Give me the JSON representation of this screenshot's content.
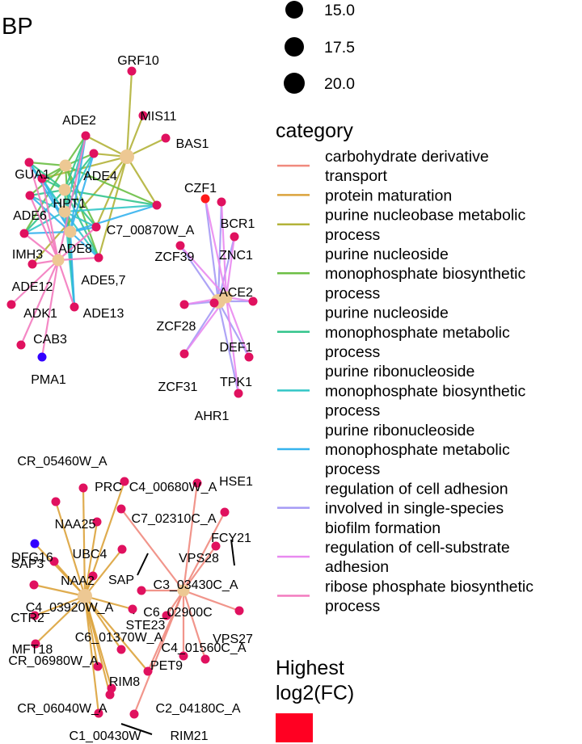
{
  "panel_title": "BP",
  "size_legend": {
    "values": [
      "15.0",
      "17.5",
      "20.0"
    ]
  },
  "category_legend": {
    "title": "category",
    "items": [
      {
        "lines": [
          "carbohydrate derivative",
          "transport"
        ],
        "color": "#f08a7e"
      },
      {
        "lines": [
          "protein maturation"
        ],
        "color": "#dba33c"
      },
      {
        "lines": [
          "purine nucleobase metabolic",
          "process"
        ],
        "color": "#b3b33a"
      },
      {
        "lines": [
          "purine nucleoside",
          "monophosphate biosynthetic",
          "process"
        ],
        "color": "#6cbf45"
      },
      {
        "lines": [
          "purine nucleoside",
          "monophosphate metabolic",
          "process"
        ],
        "color": "#33c48c"
      },
      {
        "lines": [
          "purine ribonucleoside",
          "monophosphate biosynthetic",
          "process"
        ],
        "color": "#33c6c6"
      },
      {
        "lines": [
          "purine ribonucleoside",
          "monophosphate metabolic",
          "process"
        ],
        "color": "#36b3ee"
      },
      {
        "lines": [
          "regulation of cell adhesion",
          "involved in single-species",
          "biofilm formation"
        ],
        "color": "#a59af5"
      },
      {
        "lines": [
          "regulation of cell-substrate",
          "adhesion"
        ],
        "color": "#e98af0"
      },
      {
        "lines": [
          "ribose phosphate biosynthetic",
          "process"
        ],
        "color": "#f37bbf"
      }
    ]
  },
  "fc_legend": {
    "title_lines": [
      "Highest",
      "log2(FC)"
    ],
    "color": "#ff0022"
  },
  "network": {
    "node_colors": {
      "category": "#edc893",
      "up": "#e0115f",
      "high": "#ff1a1a",
      "down": "#3a16e8",
      "down_strong": "#3300ff",
      "gray": "#b11a8a"
    },
    "category_nodes": [
      {
        "id": "c_purnb",
        "cat": 2,
        "size": 20.0
      },
      {
        "id": "c_a1",
        "cat": 3,
        "size": 17.5
      },
      {
        "id": "c_a2",
        "cat": 4,
        "size": 17.5
      },
      {
        "id": "c_a3",
        "cat": 5,
        "size": 17.5
      },
      {
        "id": "c_a4",
        "cat": 6,
        "size": 17.5
      },
      {
        "id": "c_rib",
        "cat": 9,
        "size": 17.5
      },
      {
        "id": "c_biof",
        "cat": 7,
        "size": 20.0
      },
      {
        "id": "c_subs",
        "cat": 8,
        "size": 17.5
      },
      {
        "id": "c_carb",
        "cat": 0,
        "size": 17.5
      },
      {
        "id": "c_prot",
        "cat": 1,
        "size": 20.0
      }
    ],
    "genes": [
      {
        "label": "GRF10",
        "c": "up"
      },
      {
        "label": "MIS11",
        "c": "up"
      },
      {
        "label": "BAS1",
        "c": "up"
      },
      {
        "label": "ADE2",
        "c": "up"
      },
      {
        "label": "GUA1",
        "c": "up"
      },
      {
        "label": "ADE4",
        "c": "up"
      },
      {
        "label": "HPT1",
        "c": "up"
      },
      {
        "label": "ADE6",
        "c": "up"
      },
      {
        "label": "C7_00870W_A",
        "c": "up"
      },
      {
        "label": "ADE8",
        "c": "up"
      },
      {
        "label": "IMH3",
        "c": "up"
      },
      {
        "label": "ADE5,7",
        "c": "up"
      },
      {
        "label": "ADE12",
        "c": "up"
      },
      {
        "label": "ADK1",
        "c": "up"
      },
      {
        "label": "ADE13",
        "c": "up"
      },
      {
        "label": "CAB3",
        "c": "up"
      },
      {
        "label": "PMA1",
        "c": "down_strong"
      },
      {
        "label": "CZF1",
        "c": "high"
      },
      {
        "label": "BCR1",
        "c": "up"
      },
      {
        "label": "ZCF39",
        "c": "up"
      },
      {
        "label": "ZNC1",
        "c": "up"
      },
      {
        "label": "ACE2",
        "c": "up"
      },
      {
        "label": "ZCF28",
        "c": "up"
      },
      {
        "label": "DEF1",
        "c": "up"
      },
      {
        "label": "ZCF31",
        "c": "up"
      },
      {
        "label": "TPK1",
        "c": "up"
      },
      {
        "label": "AHR1",
        "c": "up"
      },
      {
        "label": "CR_05460W_A",
        "c": "up"
      },
      {
        "label": "PRC",
        "c": "up"
      },
      {
        "label": "C4_00680W_A",
        "c": "up"
      },
      {
        "label": "HSE1",
        "c": "up"
      },
      {
        "label": "NAA25",
        "c": "up"
      },
      {
        "label": "C7_02310C_A",
        "c": "up"
      },
      {
        "label": "DFG16",
        "c": "down_strong"
      },
      {
        "label": "FCY21",
        "c": "up"
      },
      {
        "label": "UBC4",
        "c": "up"
      },
      {
        "label": "SAP3",
        "c": "up"
      },
      {
        "label": "VPS28",
        "c": "up"
      },
      {
        "label": "NAA2",
        "c": "up"
      },
      {
        "label": "SAP",
        "c": "up"
      },
      {
        "label": "C3_03430C_A",
        "c": "up"
      },
      {
        "label": "C4_03920W_A",
        "c": "up"
      },
      {
        "label": "CTR2",
        "c": "up"
      },
      {
        "label": "C6_02900C",
        "c": "up"
      },
      {
        "label": "VPS27",
        "c": "up"
      },
      {
        "label": "STE23",
        "c": "up"
      },
      {
        "label": "C6_01370W_A",
        "c": "up"
      },
      {
        "label": "MFT18",
        "c": "up"
      },
      {
        "label": "C4_01560C_A",
        "c": "up"
      },
      {
        "label": "CR_06980W_A",
        "c": "up"
      },
      {
        "label": "PET9",
        "c": "up"
      },
      {
        "label": "RIM8",
        "c": "up"
      },
      {
        "label": "C2_04180C_A",
        "c": "up"
      },
      {
        "label": "CR_06040W_A",
        "c": "up"
      },
      {
        "label": "C1_00430W",
        "c": "up"
      },
      {
        "label": "RIM21",
        "c": "up"
      }
    ]
  }
}
